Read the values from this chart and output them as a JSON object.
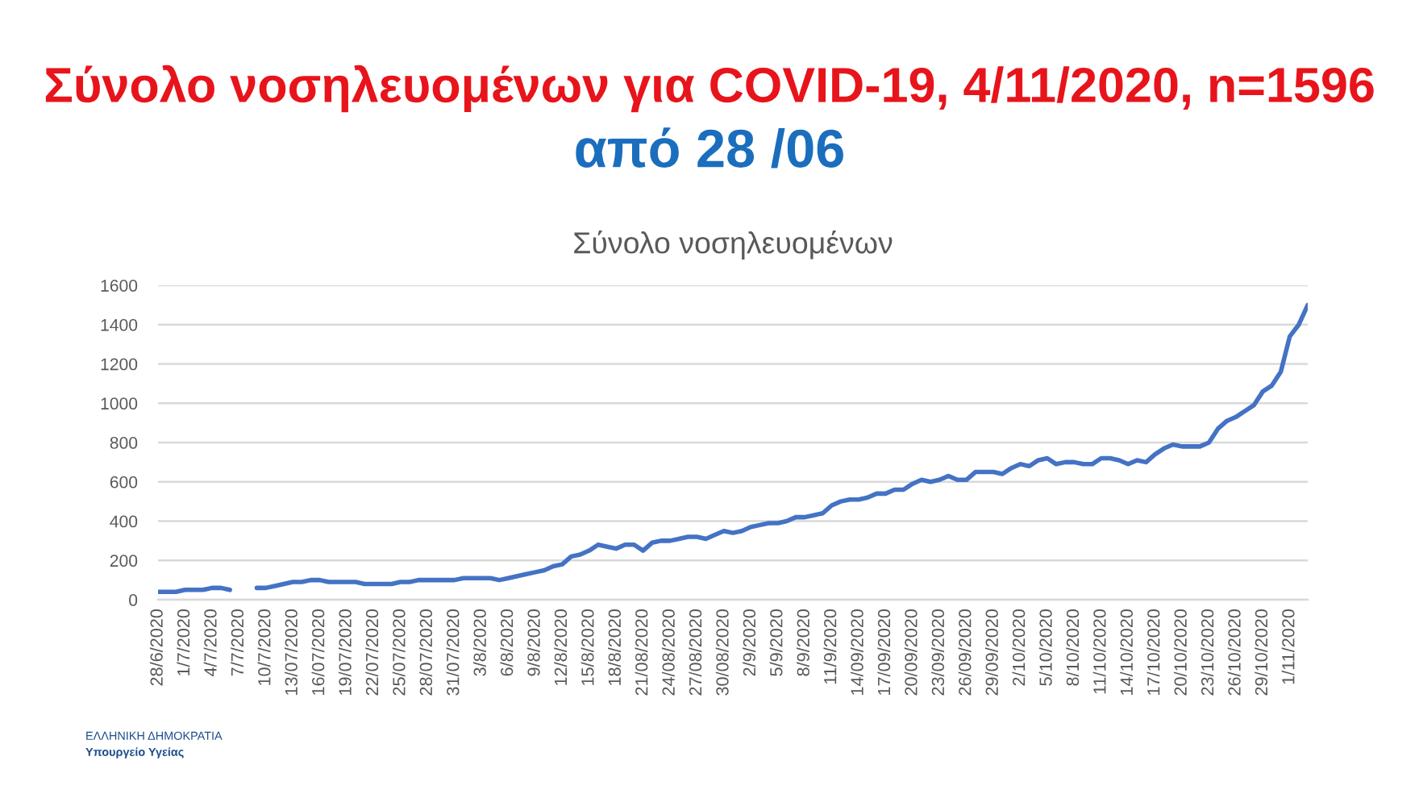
{
  "chart_data": {
    "type": "line",
    "title": "Σύνολο νοσηλευομένων για COVID-19, 4/11/2020, n=1596",
    "subtitle": "από 28 /06",
    "annotations": [
      "Σύνολο νοσηλευομένων",
      "ΕΛΛΗΝΙΚΗ ΔΗΜΟΚΡΑΤΙΑ",
      "Υπουργείο Υγείας"
    ],
    "categories": [
      "28/6/2020",
      null,
      null,
      "1/7/2020",
      null,
      null,
      "4/7/2020",
      null,
      null,
      "7/7/2020",
      null,
      null,
      "10/7/2020",
      null,
      null,
      "13/07/2020",
      null,
      null,
      "16/07/2020",
      null,
      null,
      "19/07/2020",
      null,
      null,
      "22/07/2020",
      null,
      null,
      "25/07/2020",
      null,
      null,
      "28/07/2020",
      null,
      null,
      "31/07/2020",
      null,
      null,
      "3/8/2020",
      null,
      null,
      "6/8/2020",
      null,
      null,
      "9/8/2020",
      null,
      null,
      "12/8/2020",
      null,
      null,
      "15/8/2020",
      null,
      null,
      "18/8/2020",
      null,
      null,
      "21/08/2020",
      null,
      null,
      "24/08/2020",
      null,
      null,
      "27/08/2020",
      null,
      null,
      "30/08/2020",
      null,
      null,
      "2/9/2020",
      null,
      null,
      "5/9/2020",
      null,
      null,
      "8/9/2020",
      null,
      null,
      "11/9/2020",
      null,
      null,
      "14/09/2020",
      null,
      null,
      "17/09/2020",
      null,
      null,
      "20/09/2020",
      null,
      null,
      "23/09/2020",
      null,
      null,
      "26/09/2020",
      null,
      null,
      "29/09/2020",
      null,
      null,
      "2/10/2020",
      null,
      null,
      "5/10/2020",
      null,
      null,
      "8/10/2020",
      null,
      null,
      "11/10/2020",
      null,
      null,
      "14/10/2020",
      null,
      null,
      "17/10/2020",
      null,
      null,
      "20/10/2020",
      null,
      null,
      "23/10/2020",
      null,
      null,
      "26/10/2020",
      null,
      null,
      "29/10/2020",
      null,
      null,
      "1/11/2020",
      null,
      null
    ],
    "series": [
      {
        "color": "#4472c4",
        "values": [
          40,
          40,
          40,
          50,
          50,
          50,
          60,
          60,
          50,
          null,
          null,
          60,
          60,
          70,
          80,
          90,
          90,
          100,
          100,
          90,
          90,
          90,
          90,
          80,
          80,
          80,
          80,
          90,
          90,
          100,
          100,
          100,
          100,
          100,
          110,
          110,
          110,
          110,
          100,
          110,
          120,
          130,
          140,
          150,
          170,
          180,
          220,
          230,
          250,
          280,
          270,
          260,
          280,
          280,
          250,
          290,
          300,
          300,
          310,
          320,
          320,
          310,
          330,
          350,
          340,
          350,
          370,
          380,
          390,
          390,
          400,
          420,
          420,
          430,
          440,
          480,
          500,
          510,
          510,
          520,
          540,
          540,
          560,
          560,
          590,
          610,
          600,
          610,
          630,
          610,
          610,
          650,
          650,
          650,
          640,
          670,
          690,
          680,
          710,
          720,
          690,
          700,
          700,
          690,
          690,
          720,
          720,
          710,
          690,
          710,
          700,
          740,
          770,
          790,
          780,
          780,
          780,
          800,
          870,
          910,
          930,
          960,
          990,
          1060,
          1090,
          1160,
          1340,
          1400,
          1500
        ]
      }
    ],
    "ylim": [
      0,
      1600
    ],
    "yticks": [
      0,
      200,
      400,
      600,
      800,
      1000,
      1200,
      1400,
      1600
    ],
    "grid": "y",
    "marker": "none",
    "line_style": "solid"
  }
}
